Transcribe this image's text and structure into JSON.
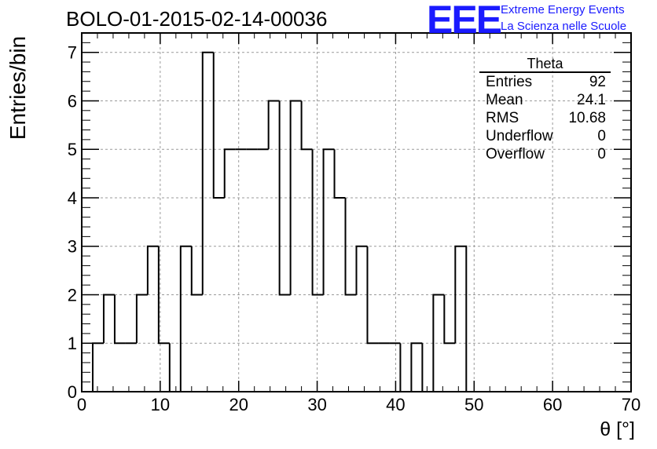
{
  "header": {
    "title": "BOLO-01-2015-02-14-00036",
    "logo": "EEE",
    "logo_line1": "Extreme Energy Events",
    "logo_line2": "La Scienza nelle Scuole"
  },
  "stats_box": {
    "title": "Theta",
    "rows": [
      {
        "label": "Entries",
        "value": "92"
      },
      {
        "label": "Mean",
        "value": "24.1"
      },
      {
        "label": "RMS",
        "value": "10.68"
      },
      {
        "label": "Underflow",
        "value": "0"
      },
      {
        "label": "Overflow",
        "value": "0"
      }
    ]
  },
  "chart_data": {
    "type": "bar",
    "histogram": true,
    "title": "BOLO-01-2015-02-14-00036",
    "xlabel": "θ [°]",
    "ylabel": "Entries/bin",
    "xlim": [
      0,
      70
    ],
    "ylim": [
      0,
      7.4
    ],
    "x_ticks": [
      "0",
      "10",
      "20",
      "30",
      "40",
      "50",
      "60",
      "70"
    ],
    "y_ticks": [
      "0",
      "1",
      "2",
      "3",
      "4",
      "5",
      "6",
      "7"
    ],
    "grid": true,
    "bin_edges": [
      1.4,
      2.8,
      4.2,
      5.6,
      7.0,
      8.4,
      9.8,
      11.2,
      12.6,
      14.0,
      15.4,
      16.8,
      18.2,
      19.6,
      21.0,
      22.4,
      23.8,
      25.2,
      26.6,
      28.0,
      29.4,
      30.8,
      32.2,
      33.6,
      35.0,
      36.4,
      37.8,
      39.2,
      40.6,
      42.0,
      43.4,
      44.8,
      46.2,
      47.6,
      49.0
    ],
    "values": [
      1,
      2,
      1,
      1,
      2,
      3,
      1,
      0,
      3,
      2,
      7,
      4,
      5,
      5,
      5,
      5,
      6,
      2,
      6,
      5,
      2,
      5,
      4,
      2,
      3,
      1,
      1,
      1,
      0,
      1,
      0,
      2,
      1,
      3
    ]
  }
}
